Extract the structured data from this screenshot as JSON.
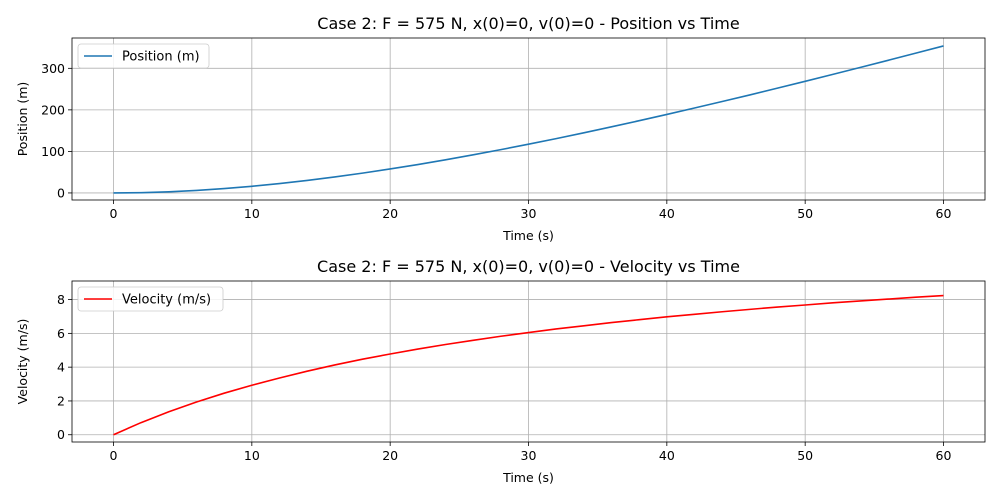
{
  "chart_data": [
    {
      "type": "line",
      "title": "Case 2: F = 575 N, x(0)=0, v(0)=0 - Position vs Time",
      "xlabel": "Time (s)",
      "ylabel": "Position (m)",
      "xlim": [
        -3,
        63
      ],
      "ylim": [
        -17,
        373
      ],
      "xticks": [
        0,
        10,
        20,
        30,
        40,
        50,
        60
      ],
      "yticks": [
        0,
        100,
        200,
        300
      ],
      "grid": true,
      "legend_position": "upper-left",
      "series": [
        {
          "name": "Position (m)",
          "color": "#1f77b4",
          "x": [
            0,
            2,
            4,
            6,
            8,
            10,
            12,
            14,
            16,
            18,
            20,
            22,
            24,
            26,
            28,
            30,
            32,
            34,
            36,
            38,
            40,
            42,
            44,
            46,
            48,
            50,
            52,
            54,
            56,
            58,
            60
          ],
          "y": [
            0,
            0.7,
            2.8,
            6.1,
            10.5,
            16,
            22.6,
            30.1,
            38.5,
            47.7,
            57.7,
            68.4,
            79.8,
            91.8,
            104.3,
            117.3,
            130.8,
            144.8,
            159.2,
            173.9,
            189,
            204.4,
            220.1,
            236,
            252.3,
            268.7,
            285.4,
            302.2,
            319.3,
            336.5,
            353.9
          ]
        }
      ]
    },
    {
      "type": "line",
      "title": "Case 2: F = 575 N, x(0)=0, v(0)=0 - Velocity vs Time",
      "xlabel": "Time (s)",
      "ylabel": "Velocity (m/s)",
      "xlim": [
        -3,
        63
      ],
      "ylim": [
        -0.43,
        9.1
      ],
      "xticks": [
        0,
        10,
        20,
        30,
        40,
        50,
        60
      ],
      "yticks": [
        0,
        2,
        4,
        6,
        8
      ],
      "grid": true,
      "legend_position": "upper-left",
      "series": [
        {
          "name": "Velocity (m/s)",
          "color": "#ff0000",
          "x": [
            0,
            2,
            4,
            6,
            8,
            10,
            12,
            14,
            16,
            18,
            20,
            22,
            24,
            26,
            28,
            30,
            32,
            34,
            36,
            38,
            40,
            42,
            44,
            46,
            48,
            50,
            52,
            54,
            56,
            58,
            60
          ],
          "y": [
            0,
            0.72,
            1.36,
            1.94,
            2.46,
            2.93,
            3.36,
            3.76,
            4.13,
            4.47,
            4.78,
            5.07,
            5.34,
            5.59,
            5.83,
            6.05,
            6.26,
            6.45,
            6.64,
            6.81,
            6.98,
            7.13,
            7.28,
            7.42,
            7.56,
            7.68,
            7.81,
            7.92,
            8.03,
            8.14,
            8.24
          ]
        }
      ]
    }
  ]
}
